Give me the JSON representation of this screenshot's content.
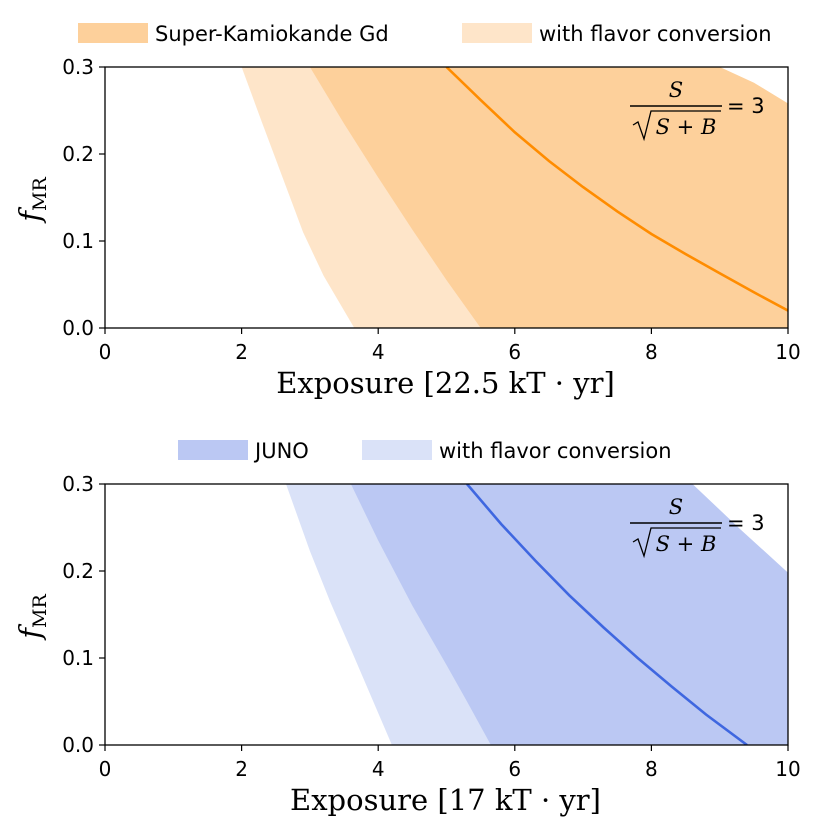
{
  "chart_data": [
    {
      "type": "area",
      "colors": {
        "band": "#fdd09b",
        "band_flavor": "#fee5c9",
        "line": "#ff8c00"
      },
      "legend": [
        "Super-Kamiokande Gd",
        "with flavor conversion"
      ],
      "xlabel": "Exposure [22.5 kT · yr]",
      "ylabel": "f",
      "ylabel_sub": "MR",
      "xlim": [
        0,
        10
      ],
      "ylim": [
        0,
        0.3
      ],
      "xticks": [
        "0",
        "2",
        "4",
        "6",
        "8",
        "10"
      ],
      "yticks": [
        "0.0",
        "0.1",
        "0.2",
        "0.3"
      ],
      "annotation": {
        "numerator": "S",
        "denominator": "S + B",
        "equals": "= 3"
      },
      "series": [
        {
          "name": "band_flavor_left",
          "x": [
            2.0,
            2.3,
            2.6,
            2.9,
            3.2,
            3.65
          ],
          "y": [
            0.3,
            0.236,
            0.173,
            0.11,
            0.06,
            0.0
          ]
        },
        {
          "name": "band_left",
          "x": [
            3.0,
            3.5,
            4.0,
            4.5,
            5.0,
            5.5
          ],
          "y": [
            0.3,
            0.235,
            0.173,
            0.113,
            0.055,
            0.0
          ]
        },
        {
          "name": "band_right",
          "x": [
            9.0,
            9.5,
            10.0
          ],
          "y": [
            0.3,
            0.282,
            0.258
          ]
        },
        {
          "name": "central_line",
          "x": [
            5.0,
            5.5,
            6.0,
            6.5,
            7.0,
            7.5,
            8.0,
            8.5,
            9.0,
            9.5,
            10.0
          ],
          "y": [
            0.3,
            0.262,
            0.225,
            0.192,
            0.162,
            0.134,
            0.108,
            0.085,
            0.063,
            0.041,
            0.02
          ]
        }
      ]
    },
    {
      "type": "area",
      "colors": {
        "band": "#bbc8f3",
        "band_flavor": "#dae2f8",
        "line": "#3f67e0"
      },
      "legend": [
        "JUNO",
        "with flavor conversion"
      ],
      "xlabel": "Exposure [17 kT · yr]",
      "ylabel": "f",
      "ylabel_sub": "MR",
      "xlim": [
        0,
        10
      ],
      "ylim": [
        0,
        0.3
      ],
      "xticks": [
        "0",
        "2",
        "4",
        "6",
        "8",
        "10"
      ],
      "yticks": [
        "0.0",
        "0.1",
        "0.2",
        "0.3"
      ],
      "annotation": {
        "numerator": "S",
        "denominator": "S + B",
        "equals": "= 3"
      },
      "series": [
        {
          "name": "band_flavor_left",
          "x": [
            2.65,
            3.0,
            3.3,
            3.6,
            3.9,
            4.2
          ],
          "y": [
            0.3,
            0.223,
            0.164,
            0.11,
            0.055,
            0.0
          ]
        },
        {
          "name": "band_left",
          "x": [
            3.6,
            4.0,
            4.5,
            5.0,
            5.3,
            5.65
          ],
          "y": [
            0.3,
            0.235,
            0.16,
            0.092,
            0.05,
            0.0
          ]
        },
        {
          "name": "band_right",
          "x": [
            8.6,
            9.3,
            10.0
          ],
          "y": [
            0.3,
            0.248,
            0.198
          ]
        },
        {
          "name": "central_line",
          "x": [
            5.3,
            5.8,
            6.3,
            6.8,
            7.3,
            7.8,
            8.3,
            8.8,
            9.4
          ],
          "y": [
            0.3,
            0.254,
            0.212,
            0.172,
            0.135,
            0.1,
            0.067,
            0.035,
            0.0
          ]
        }
      ]
    }
  ]
}
